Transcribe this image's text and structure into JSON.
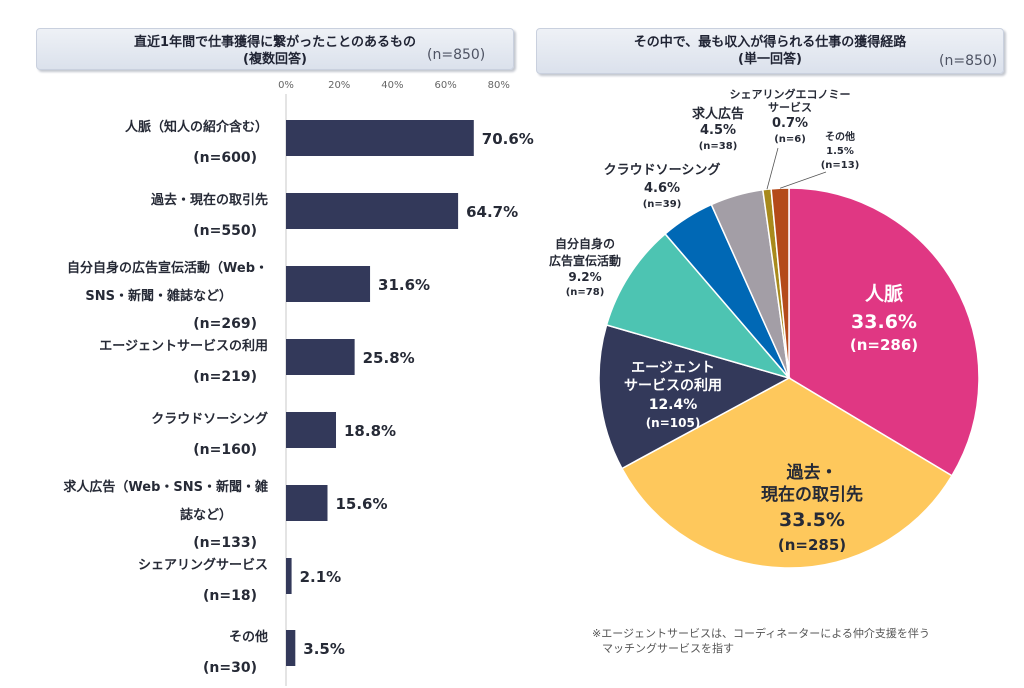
{
  "left_header": {
    "title": "直近1年間で仕事獲得に繋がったことのあるもの",
    "subtitle": "(複数回答)",
    "n": "(n=850)"
  },
  "right_header": {
    "title": "その中で、最も収入が得られる仕事の獲得経路",
    "subtitle": "(単一回答)",
    "n": "(n=850)"
  },
  "note": {
    "line1": "※エージェントサービスは、コーディネーターによる仲介支援を伴う",
    "line2": "マッチングサービスを指す"
  },
  "chart_data": [
    {
      "type": "bar",
      "orientation": "horizontal",
      "title": "直近1年間で仕事獲得に繋がったことのあるもの",
      "subtitle": "(複数回答)",
      "xlim": [
        0,
        80
      ],
      "xticks": [
        "0%",
        "20%",
        "40%",
        "60%",
        "80%"
      ],
      "value_suffix": "%",
      "color": "#33395a",
      "categories": [
        {
          "lines": [
            "人脈（知人の紹介含む）"
          ],
          "n": "(n=600)",
          "value": 70.6,
          "label": "70.6%"
        },
        {
          "lines": [
            "過去・現在の取引先"
          ],
          "n": "(n=550)",
          "value": 64.7,
          "label": "64.7%"
        },
        {
          "lines": [
            "自分自身の広告宣伝活動（Web・",
            "SNS・新聞・雑誌など）"
          ],
          "n": "(n=269)",
          "value": 31.6,
          "label": "31.6%"
        },
        {
          "lines": [
            "エージェントサービスの利用"
          ],
          "n": "(n=219)",
          "value": 25.8,
          "label": "25.8%"
        },
        {
          "lines": [
            "クラウドソーシング"
          ],
          "n": "(n=160)",
          "value": 18.8,
          "label": "18.8%"
        },
        {
          "lines": [
            "求人広告（Web・SNS・新聞・雑",
            "誌など）"
          ],
          "n": "(n=133)",
          "value": 15.6,
          "label": "15.6%"
        },
        {
          "lines": [
            "シェアリングサービス"
          ],
          "n": "(n=18)",
          "value": 2.1,
          "label": "2.1%"
        },
        {
          "lines": [
            "その他"
          ],
          "n": "(n=30)",
          "value": 3.5,
          "label": "3.5%"
        }
      ]
    },
    {
      "type": "pie",
      "title": "その中で、最も収入が得られる仕事の獲得経路",
      "subtitle": "(単一回答)",
      "slices": [
        {
          "lines": [
            "人脈"
          ],
          "pct": "33.6%",
          "n": "(n=286)",
          "value": 33.6,
          "color": "#e03783"
        },
        {
          "lines": [
            "過去・",
            "現在の取引先"
          ],
          "pct": "33.5%",
          "n": "(n=285)",
          "value": 33.5,
          "color": "#fec85c"
        },
        {
          "lines": [
            "エージェント",
            "サービスの利用"
          ],
          "pct": "12.4%",
          "n": "(n=105)",
          "value": 12.4,
          "color": "#33395a"
        },
        {
          "lines": [
            "自分自身の",
            "広告宣伝活動"
          ],
          "pct": "9.2%",
          "n": "(n=78)",
          "value": 9.2,
          "color": "#4dc4b2"
        },
        {
          "lines": [
            "クラウドソーシング"
          ],
          "pct": "4.6%",
          "n": "(n=39)",
          "value": 4.6,
          "color": "#0068b5"
        },
        {
          "lines": [
            "求人広告"
          ],
          "pct": "4.5%",
          "n": "(n=38)",
          "value": 4.5,
          "color": "#a39ea6"
        },
        {
          "lines": [
            "シェアリングエコノミー",
            "サービス"
          ],
          "pct": "0.7%",
          "n": "(n=6)",
          "value": 0.7,
          "color": "#a88a1c"
        },
        {
          "lines": [
            "その他"
          ],
          "pct": "1.5%",
          "n": "(n=13)",
          "value": 1.5,
          "color": "#b44a1a"
        }
      ]
    }
  ]
}
